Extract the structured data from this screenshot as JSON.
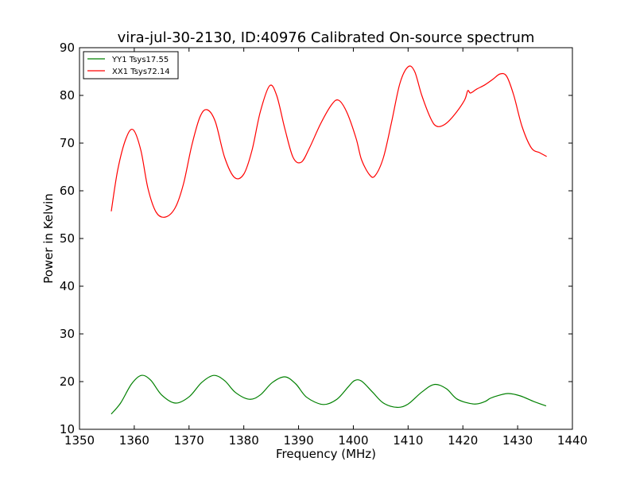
{
  "chart_data": {
    "type": "line",
    "title": "vira-jul-30-2130, ID:40976 Calibrated On-source spectrum",
    "xlabel": "Frequency (MHz)",
    "ylabel": "Power in Kelvin",
    "xlim": [
      1350,
      1440
    ],
    "ylim": [
      10,
      90
    ],
    "xticks": [
      1350,
      1360,
      1370,
      1380,
      1390,
      1400,
      1410,
      1420,
      1430,
      1440
    ],
    "yticks": [
      10,
      20,
      30,
      40,
      50,
      60,
      70,
      80,
      90
    ],
    "grid": false,
    "legend_position": "top-left",
    "series": [
      {
        "name": "YY1 Tsys17.55",
        "color": "#008000",
        "x": [
          1355.8,
          1357.5,
          1359.5,
          1361.3,
          1363.0,
          1365.0,
          1367.5,
          1370.0,
          1372.3,
          1374.5,
          1376.5,
          1378.5,
          1381.0,
          1383.0,
          1385.2,
          1387.5,
          1389.5,
          1391.5,
          1394.5,
          1397.0,
          1399.0,
          1400.2,
          1401.5,
          1403.5,
          1405.5,
          1408.0,
          1410.0,
          1412.5,
          1414.8,
          1417.0,
          1419.0,
          1422.0,
          1424.0,
          1425.0,
          1426.5,
          1428.3,
          1430.5,
          1433.0,
          1435.2
        ],
        "y": [
          13.2,
          15.5,
          19.5,
          21.3,
          20.3,
          17.2,
          15.5,
          16.8,
          19.8,
          21.3,
          20.2,
          17.7,
          16.3,
          17.2,
          19.8,
          21.0,
          19.5,
          16.7,
          15.2,
          16.3,
          18.8,
          20.2,
          20.1,
          17.8,
          15.5,
          14.6,
          15.3,
          17.8,
          19.4,
          18.5,
          16.3,
          15.3,
          15.8,
          16.5,
          17.1,
          17.5,
          17.0,
          15.8,
          14.9
        ]
      },
      {
        "name": "XX1 Tsys72.14",
        "color": "#ff0000",
        "x": [
          1355.8,
          1357.0,
          1358.5,
          1359.8,
          1361.2,
          1362.5,
          1364.0,
          1365.7,
          1367.5,
          1369.0,
          1370.5,
          1372.0,
          1373.3,
          1374.8,
          1376.5,
          1378.3,
          1380.0,
          1381.5,
          1383.0,
          1384.7,
          1386.0,
          1387.5,
          1389.0,
          1390.5,
          1392.0,
          1394.0,
          1396.0,
          1397.3,
          1398.8,
          1400.5,
          1401.5,
          1403.0,
          1404.0,
          1405.5,
          1407.0,
          1408.5,
          1410.0,
          1411.2,
          1412.5,
          1414.2,
          1415.3,
          1416.8,
          1418.5,
          1420.3,
          1420.9,
          1421.4,
          1422.5,
          1424.0,
          1425.5,
          1426.8,
          1428.0,
          1429.3,
          1430.8,
          1432.5,
          1434.0,
          1435.3
        ],
        "y": [
          55.7,
          64.5,
          71.0,
          72.8,
          68.5,
          60.5,
          55.5,
          54.5,
          56.5,
          61.5,
          69.5,
          75.5,
          77.0,
          74.5,
          67.0,
          62.8,
          63.5,
          68.5,
          76.5,
          82.0,
          80.0,
          73.0,
          67.0,
          66.0,
          69.0,
          74.0,
          78.0,
          79.0,
          76.5,
          71.0,
          66.5,
          63.3,
          63.2,
          67.0,
          74.5,
          82.5,
          86.0,
          85.0,
          80.0,
          75.0,
          73.5,
          74.0,
          76.0,
          79.0,
          81.0,
          80.5,
          81.3,
          82.2,
          83.4,
          84.5,
          84.0,
          80.0,
          73.5,
          69.0,
          68.0,
          67.2
        ]
      }
    ]
  }
}
